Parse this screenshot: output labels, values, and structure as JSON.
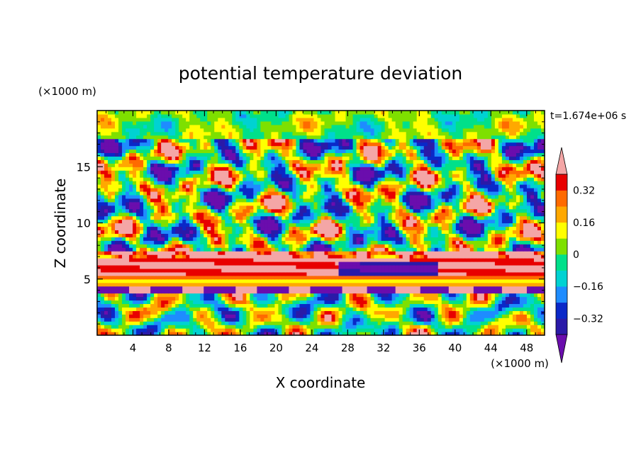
{
  "chart_data": {
    "type": "heatmap",
    "title": "potential temperature deviation",
    "time_label": "t=1.674e+06 s",
    "xlabel": "X coordinate",
    "ylabel": "Z coordinate",
    "x_unit": "(×1000 m)",
    "y_unit": "(×1000 m)",
    "xlim": [
      0,
      50
    ],
    "ylim": [
      0,
      20
    ],
    "x_ticks": [
      4,
      8,
      12,
      16,
      20,
      24,
      28,
      32,
      36,
      40,
      44,
      48
    ],
    "x_tick_labels": [
      "4",
      "8",
      "12",
      "16",
      "20",
      "24",
      "28",
      "32",
      "36",
      "40",
      "44",
      "48"
    ],
    "y_ticks": [
      5,
      10,
      15
    ],
    "y_tick_labels": [
      "5",
      "10",
      "15"
    ],
    "colorbar": {
      "levels": [
        -0.4,
        -0.32,
        -0.24,
        -0.16,
        -0.08,
        0,
        0.08,
        0.16,
        0.24,
        0.32,
        0.4
      ],
      "tick_values": [
        0.32,
        0.16,
        0,
        -0.16,
        -0.32
      ],
      "tick_labels": [
        "0.32",
        "0.16",
        "0",
        "−0.16",
        "−0.32"
      ],
      "colors": [
        "#6a0dad",
        "#2a1aa8",
        "#0a28c8",
        "#1e8cff",
        "#00d2d2",
        "#00e08a",
        "#7ee000",
        "#ffff00",
        "#ffa800",
        "#ff6a00",
        "#e80000",
        "#f4a6a6"
      ],
      "extend": "both"
    }
  }
}
